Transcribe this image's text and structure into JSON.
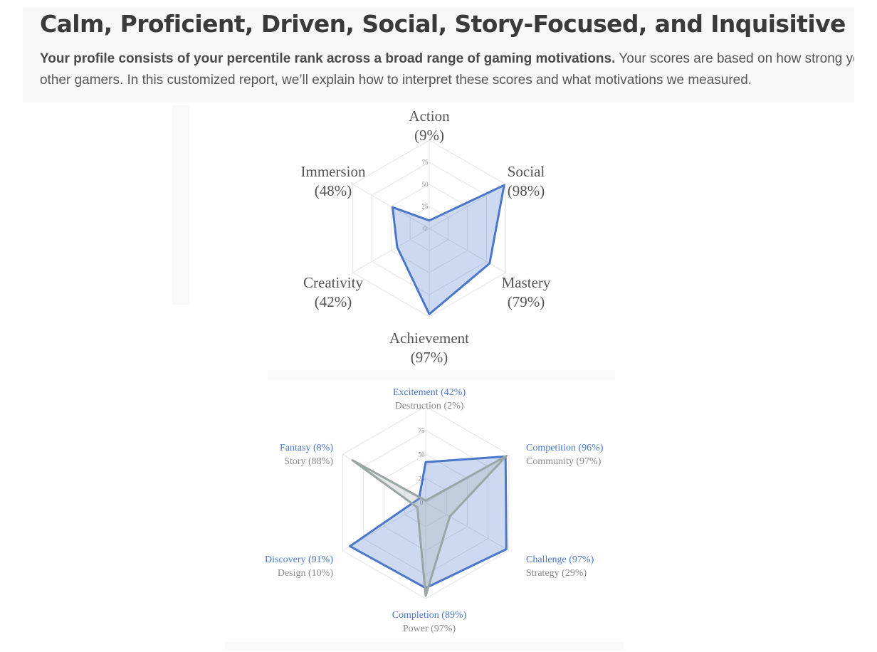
{
  "header": {
    "title": "Calm, Proficient, Driven, Social, Story-Focused, and Inquisitive",
    "intro_bold": "Your profile consists of your percentile rank across a broad range of gaming motivations.",
    "intro_rest": " Your scores are based on how strong your motivations are compared to other gamers. In this customized report, we’ll explain how to interpret these scores and what motivations we measured.",
    "intro_line1_rest": " Your scores are based on how strong your",
    "intro_line2": "other gamers. In this customized report, we’ll explain how to interpret these scores and what motivations we measured."
  },
  "chart_data": [
    {
      "type": "radar",
      "categories": [
        "Action",
        "Social",
        "Mastery",
        "Achievement",
        "Creativity",
        "Immersion"
      ],
      "category_labels": [
        "(9%)",
        "(98%)",
        "(79%)",
        "(97%)",
        "(42%)",
        "(48%)"
      ],
      "values": [
        9,
        98,
        79,
        97,
        42,
        48
      ],
      "range": [
        0,
        100
      ],
      "ticks": [
        "0",
        "25",
        "50",
        "75"
      ],
      "color": "#4a77c9"
    },
    {
      "type": "radar",
      "categories": [
        "Excitement",
        "Competition",
        "Challenge",
        "Completion",
        "Discovery",
        "Fantasy"
      ],
      "secondary_categories": [
        "Destruction",
        "Community",
        "Strategy",
        "Power",
        "Design",
        "Story"
      ],
      "series": [
        {
          "labels": [
            "Excitement (42%)",
            "Competition (96%)",
            "Challenge (97%)",
            "Completion (89%)",
            "Discovery (91%)",
            "Fantasy (8%)"
          ],
          "values": [
            42,
            96,
            97,
            89,
            91,
            8
          ],
          "color": "#4a77c9"
        },
        {
          "labels": [
            "Destruction (2%)",
            "Community (97%)",
            "Strategy (29%)",
            "Power (97%)",
            "Design (10%)",
            "Story (88%)"
          ],
          "values": [
            2,
            97,
            29,
            97,
            10,
            88
          ],
          "color": "#9aa5a6"
        }
      ],
      "range": [
        0,
        100
      ],
      "ticks": [
        "0",
        "25",
        "50",
        "75"
      ]
    }
  ]
}
